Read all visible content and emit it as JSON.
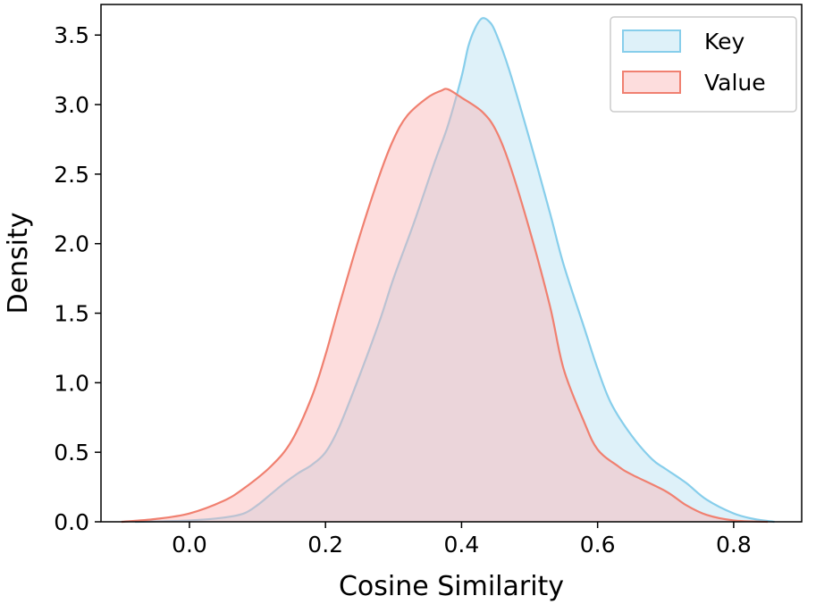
{
  "chart_data": {
    "type": "area",
    "title": "",
    "xlabel": "Cosine Similarity",
    "ylabel": "Density",
    "xlim": [
      -0.13,
      0.9
    ],
    "ylim": [
      0,
      3.72
    ],
    "x_ticks": [
      0.0,
      0.2,
      0.4,
      0.6,
      0.8
    ],
    "x_tick_labels": [
      "0.0",
      "0.2",
      "0.4",
      "0.6",
      "0.8"
    ],
    "y_ticks": [
      0.0,
      0.5,
      1.0,
      1.5,
      2.0,
      2.5,
      3.0,
      3.5
    ],
    "y_tick_labels": [
      "0.0",
      "0.5",
      "1.0",
      "1.5",
      "2.0",
      "2.5",
      "3.0",
      "3.5"
    ],
    "grid": false,
    "legend_position": "top-right",
    "series": [
      {
        "name": "Key",
        "fill": "#87ceeb",
        "stroke": "#87ceeb",
        "x": [
          -0.08,
          0.0,
          0.05,
          0.08,
          0.1,
          0.12,
          0.14,
          0.16,
          0.18,
          0.2,
          0.22,
          0.25,
          0.28,
          0.3,
          0.33,
          0.36,
          0.38,
          0.4,
          0.41,
          0.42,
          0.43,
          0.44,
          0.45,
          0.47,
          0.5,
          0.53,
          0.55,
          0.58,
          0.6,
          0.62,
          0.65,
          0.68,
          0.7,
          0.73,
          0.76,
          0.8,
          0.83,
          0.86
        ],
        "y": [
          0.0,
          0.01,
          0.03,
          0.06,
          0.12,
          0.2,
          0.28,
          0.35,
          0.41,
          0.5,
          0.68,
          1.05,
          1.45,
          1.75,
          2.15,
          2.58,
          2.85,
          3.2,
          3.42,
          3.55,
          3.62,
          3.6,
          3.52,
          3.25,
          2.75,
          2.22,
          1.85,
          1.4,
          1.1,
          0.85,
          0.62,
          0.45,
          0.38,
          0.28,
          0.16,
          0.06,
          0.02,
          0.0
        ]
      },
      {
        "name": "Value",
        "fill": "#fbb4b4",
        "stroke": "#f08070",
        "x": [
          -0.1,
          -0.05,
          0.0,
          0.05,
          0.08,
          0.12,
          0.15,
          0.18,
          0.2,
          0.22,
          0.25,
          0.28,
          0.3,
          0.32,
          0.35,
          0.37,
          0.38,
          0.4,
          0.43,
          0.45,
          0.47,
          0.5,
          0.53,
          0.55,
          0.58,
          0.6,
          0.63,
          0.65,
          0.7,
          0.73,
          0.76,
          0.8,
          0.85
        ],
        "y": [
          0.0,
          0.02,
          0.06,
          0.15,
          0.24,
          0.4,
          0.58,
          0.9,
          1.2,
          1.55,
          2.05,
          2.5,
          2.75,
          2.92,
          3.05,
          3.1,
          3.11,
          3.05,
          2.95,
          2.82,
          2.58,
          2.1,
          1.55,
          1.1,
          0.72,
          0.52,
          0.4,
          0.34,
          0.22,
          0.12,
          0.05,
          0.01,
          0.0
        ]
      }
    ]
  }
}
